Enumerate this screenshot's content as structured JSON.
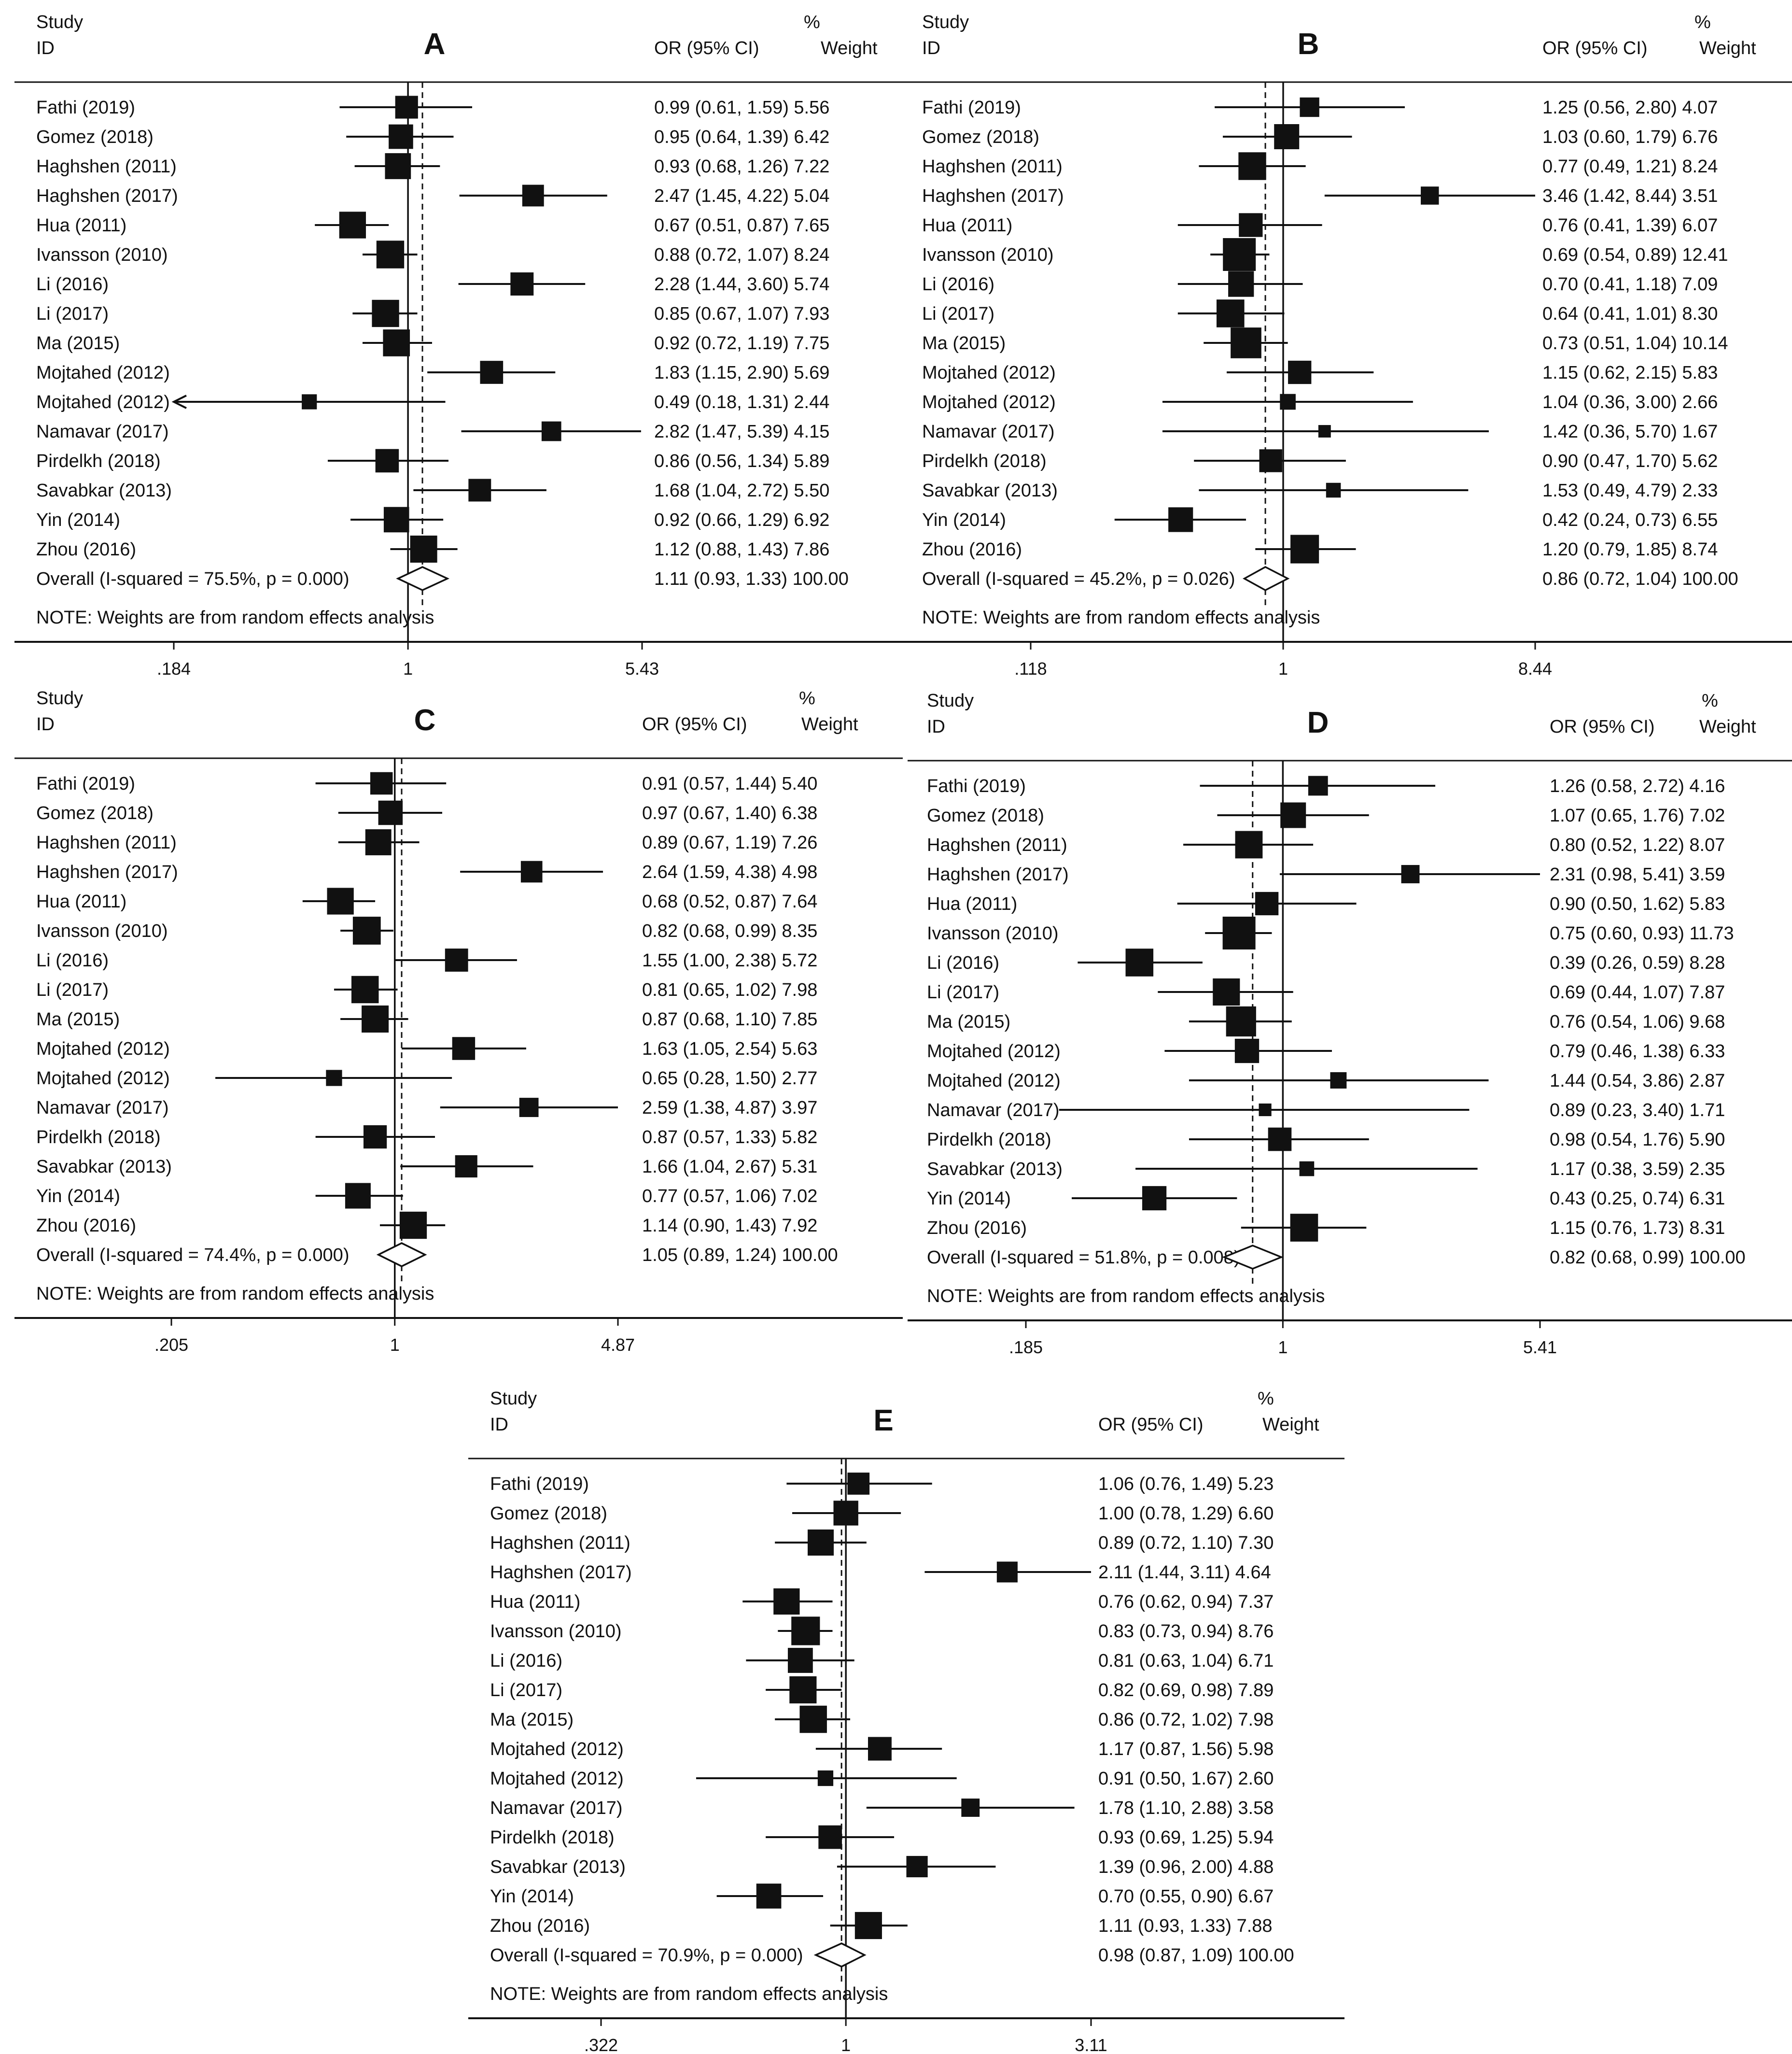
{
  "chart_data": [
    {
      "type": "forest",
      "panel": "A",
      "title": "A",
      "header": {
        "study": "Study",
        "id": "ID",
        "or": "OR (95% CI)",
        "pct": "%",
        "weight": "Weight"
      },
      "studies": [
        {
          "label": "Fathi (2019)",
          "or": 0.99,
          "lo": 0.61,
          "hi": 1.59,
          "weight": 5.56,
          "text": "0.99 (0.61, 1.59) 5.56"
        },
        {
          "label": "Gomez (2018)",
          "or": 0.95,
          "lo": 0.64,
          "hi": 1.39,
          "weight": 6.42,
          "text": "0.95 (0.64, 1.39) 6.42"
        },
        {
          "label": "Haghshen (2011)",
          "or": 0.93,
          "lo": 0.68,
          "hi": 1.26,
          "weight": 7.22,
          "text": "0.93 (0.68, 1.26) 7.22"
        },
        {
          "label": "Haghshen (2017)",
          "or": 2.47,
          "lo": 1.45,
          "hi": 4.22,
          "weight": 5.04,
          "text": "2.47 (1.45, 4.22) 5.04"
        },
        {
          "label": "Hua (2011)",
          "or": 0.67,
          "lo": 0.51,
          "hi": 0.87,
          "weight": 7.65,
          "text": "0.67 (0.51, 0.87) 7.65"
        },
        {
          "label": "Ivansson (2010)",
          "or": 0.88,
          "lo": 0.72,
          "hi": 1.07,
          "weight": 8.24,
          "text": "0.88 (0.72, 1.07) 8.24"
        },
        {
          "label": "Li (2016)",
          "or": 2.28,
          "lo": 1.44,
          "hi": 3.6,
          "weight": 5.74,
          "text": "2.28 (1.44, 3.60) 5.74"
        },
        {
          "label": "Li (2017)",
          "or": 0.85,
          "lo": 0.67,
          "hi": 1.07,
          "weight": 7.93,
          "text": "0.85 (0.67, 1.07) 7.93"
        },
        {
          "label": "Ma (2015)",
          "or": 0.92,
          "lo": 0.72,
          "hi": 1.19,
          "weight": 7.75,
          "text": "0.92 (0.72, 1.19) 7.75"
        },
        {
          "label": "Mojtahed (2012)",
          "or": 1.83,
          "lo": 1.15,
          "hi": 2.9,
          "weight": 5.69,
          "text": "1.83 (1.15, 2.90) 5.69"
        },
        {
          "label": "Mojtahed (2012)",
          "or": 0.49,
          "lo": 0.18,
          "hi": 1.31,
          "weight": 2.44,
          "text": "0.49 (0.18, 1.31) 2.44"
        },
        {
          "label": "Namavar (2017)",
          "or": 2.82,
          "lo": 1.47,
          "hi": 5.39,
          "weight": 4.15,
          "text": "2.82 (1.47, 5.39) 4.15"
        },
        {
          "label": "Pirdelkh (2018)",
          "or": 0.86,
          "lo": 0.56,
          "hi": 1.34,
          "weight": 5.89,
          "text": "0.86 (0.56, 1.34) 5.89"
        },
        {
          "label": "Savabkar (2013)",
          "or": 1.68,
          "lo": 1.04,
          "hi": 2.72,
          "weight": 5.5,
          "text": "1.68 (1.04, 2.72) 5.50"
        },
        {
          "label": "Yin (2014)",
          "or": 0.92,
          "lo": 0.66,
          "hi": 1.29,
          "weight": 6.92,
          "text": "0.92 (0.66, 1.29) 6.92"
        },
        {
          "label": "Zhou (2016)",
          "or": 1.12,
          "lo": 0.88,
          "hi": 1.43,
          "weight": 7.86,
          "text": "1.12 (0.88, 1.43) 7.86"
        }
      ],
      "overall": {
        "label": "Overall  (I-squared = 75.5%, p = 0.000)",
        "or": 1.11,
        "lo": 0.93,
        "hi": 1.33,
        "text": "1.11 (0.93, 1.33) 100.00"
      },
      "note": "NOTE: Weights are from random effects analysis",
      "axis": {
        "scale": "log",
        "min": 0.184,
        "max": 5.43,
        "ticks": [
          ".184",
          "1",
          "5.43"
        ]
      }
    },
    {
      "type": "forest",
      "panel": "B",
      "title": "B",
      "header": {
        "study": "Study",
        "id": "ID",
        "or": "OR (95% CI)",
        "pct": "%",
        "weight": "Weight"
      },
      "studies": [
        {
          "label": "Fathi (2019)",
          "or": 1.25,
          "lo": 0.56,
          "hi": 2.8,
          "weight": 4.07,
          "text": "1.25 (0.56, 2.80) 4.07"
        },
        {
          "label": "Gomez (2018)",
          "or": 1.03,
          "lo": 0.6,
          "hi": 1.79,
          "weight": 6.76,
          "text": "1.03 (0.60, 1.79) 6.76"
        },
        {
          "label": "Haghshen (2011)",
          "or": 0.77,
          "lo": 0.49,
          "hi": 1.21,
          "weight": 8.24,
          "text": "0.77 (0.49, 1.21) 8.24"
        },
        {
          "label": "Haghshen (2017)",
          "or": 3.46,
          "lo": 1.42,
          "hi": 8.44,
          "weight": 3.51,
          "text": "3.46 (1.42, 8.44) 3.51"
        },
        {
          "label": "Hua (2011)",
          "or": 0.76,
          "lo": 0.41,
          "hi": 1.39,
          "weight": 6.07,
          "text": "0.76 (0.41, 1.39) 6.07"
        },
        {
          "label": "Ivansson (2010)",
          "or": 0.69,
          "lo": 0.54,
          "hi": 0.89,
          "weight": 12.41,
          "text": "0.69 (0.54, 0.89) 12.41"
        },
        {
          "label": "Li (2016)",
          "or": 0.7,
          "lo": 0.41,
          "hi": 1.18,
          "weight": 7.09,
          "text": "0.70 (0.41, 1.18) 7.09"
        },
        {
          "label": "Li (2017)",
          "or": 0.64,
          "lo": 0.41,
          "hi": 1.01,
          "weight": 8.3,
          "text": "0.64 (0.41, 1.01) 8.30"
        },
        {
          "label": "Ma (2015)",
          "or": 0.73,
          "lo": 0.51,
          "hi": 1.04,
          "weight": 10.14,
          "text": "0.73 (0.51, 1.04) 10.14"
        },
        {
          "label": "Mojtahed (2012)",
          "or": 1.15,
          "lo": 0.62,
          "hi": 2.15,
          "weight": 5.83,
          "text": "1.15 (0.62, 2.15) 5.83"
        },
        {
          "label": "Mojtahed (2012)",
          "or": 1.04,
          "lo": 0.36,
          "hi": 3.0,
          "weight": 2.66,
          "text": "1.04 (0.36, 3.00) 2.66"
        },
        {
          "label": "Namavar (2017)",
          "or": 1.42,
          "lo": 0.36,
          "hi": 5.7,
          "weight": 1.67,
          "text": "1.42 (0.36, 5.70) 1.67"
        },
        {
          "label": "Pirdelkh (2018)",
          "or": 0.9,
          "lo": 0.47,
          "hi": 1.7,
          "weight": 5.62,
          "text": "0.90 (0.47, 1.70) 5.62"
        },
        {
          "label": "Savabkar (2013)",
          "or": 1.53,
          "lo": 0.49,
          "hi": 4.79,
          "weight": 2.33,
          "text": "1.53 (0.49, 4.79) 2.33"
        },
        {
          "label": "Yin (2014)",
          "or": 0.42,
          "lo": 0.24,
          "hi": 0.73,
          "weight": 6.55,
          "text": "0.42 (0.24, 0.73) 6.55"
        },
        {
          "label": "Zhou (2016)",
          "or": 1.2,
          "lo": 0.79,
          "hi": 1.85,
          "weight": 8.74,
          "text": "1.20 (0.79, 1.85) 8.74"
        }
      ],
      "overall": {
        "label": "Overall  (I-squared = 45.2%, p = 0.026)",
        "or": 0.86,
        "lo": 0.72,
        "hi": 1.04,
        "text": "0.86 (0.72, 1.04) 100.00"
      },
      "note": "NOTE: Weights are from random effects analysis",
      "axis": {
        "scale": "log",
        "min": 0.118,
        "max": 8.44,
        "ticks": [
          ".118",
          "1",
          "8.44"
        ]
      }
    },
    {
      "type": "forest",
      "panel": "C",
      "title": "C",
      "header": {
        "study": "Study",
        "id": "ID",
        "or": "OR (95% CI)",
        "pct": "%",
        "weight": "Weight"
      },
      "studies": [
        {
          "label": "Fathi (2019)",
          "or": 0.91,
          "lo": 0.57,
          "hi": 1.44,
          "weight": 5.4,
          "text": "0.91 (0.57, 1.44) 5.40"
        },
        {
          "label": "Gomez (2018)",
          "or": 0.97,
          "lo": 0.67,
          "hi": 1.4,
          "weight": 6.38,
          "text": "0.97 (0.67, 1.40) 6.38"
        },
        {
          "label": "Haghshen (2011)",
          "or": 0.89,
          "lo": 0.67,
          "hi": 1.19,
          "weight": 7.26,
          "text": "0.89 (0.67, 1.19) 7.26"
        },
        {
          "label": "Haghshen (2017)",
          "or": 2.64,
          "lo": 1.59,
          "hi": 4.38,
          "weight": 4.98,
          "text": "2.64 (1.59, 4.38) 4.98"
        },
        {
          "label": "Hua (2011)",
          "or": 0.68,
          "lo": 0.52,
          "hi": 0.87,
          "weight": 7.64,
          "text": "0.68 (0.52, 0.87) 7.64"
        },
        {
          "label": "Ivansson (2010)",
          "or": 0.82,
          "lo": 0.68,
          "hi": 0.99,
          "weight": 8.35,
          "text": "0.82 (0.68, 0.99) 8.35"
        },
        {
          "label": "Li (2016)",
          "or": 1.55,
          "lo": 1.0,
          "hi": 2.38,
          "weight": 5.72,
          "text": "1.55 (1.00, 2.38) 5.72"
        },
        {
          "label": "Li (2017)",
          "or": 0.81,
          "lo": 0.65,
          "hi": 1.02,
          "weight": 7.98,
          "text": "0.81 (0.65, 1.02) 7.98"
        },
        {
          "label": "Ma (2015)",
          "or": 0.87,
          "lo": 0.68,
          "hi": 1.1,
          "weight": 7.85,
          "text": "0.87 (0.68, 1.10) 7.85"
        },
        {
          "label": "Mojtahed (2012)",
          "or": 1.63,
          "lo": 1.05,
          "hi": 2.54,
          "weight": 5.63,
          "text": "1.63 (1.05, 2.54) 5.63"
        },
        {
          "label": "Mojtahed (2012)",
          "or": 0.65,
          "lo": 0.28,
          "hi": 1.5,
          "weight": 2.77,
          "text": "0.65 (0.28, 1.50) 2.77"
        },
        {
          "label": "Namavar (2017)",
          "or": 2.59,
          "lo": 1.38,
          "hi": 4.87,
          "weight": 3.97,
          "text": "2.59 (1.38, 4.87) 3.97"
        },
        {
          "label": "Pirdelkh (2018)",
          "or": 0.87,
          "lo": 0.57,
          "hi": 1.33,
          "weight": 5.82,
          "text": "0.87 (0.57, 1.33) 5.82"
        },
        {
          "label": "Savabkar (2013)",
          "or": 1.66,
          "lo": 1.04,
          "hi": 2.67,
          "weight": 5.31,
          "text": "1.66 (1.04, 2.67) 5.31"
        },
        {
          "label": "Yin (2014)",
          "or": 0.77,
          "lo": 0.57,
          "hi": 1.06,
          "weight": 7.02,
          "text": "0.77 (0.57, 1.06) 7.02"
        },
        {
          "label": "Zhou (2016)",
          "or": 1.14,
          "lo": 0.9,
          "hi": 1.43,
          "weight": 7.92,
          "text": "1.14 (0.90, 1.43) 7.92"
        }
      ],
      "overall": {
        "label": "Overall  (I-squared = 74.4%, p = 0.000)",
        "or": 1.05,
        "lo": 0.89,
        "hi": 1.24,
        "text": "1.05 (0.89, 1.24) 100.00"
      },
      "note": "NOTE: Weights are from random effects analysis",
      "axis": {
        "scale": "log",
        "min": 0.205,
        "max": 4.87,
        "ticks": [
          ".205",
          "1",
          "4.87"
        ]
      }
    },
    {
      "type": "forest",
      "panel": "D",
      "title": "D",
      "header": {
        "study": "Study",
        "id": "ID",
        "or": "OR (95% CI)",
        "pct": "%",
        "weight": "Weight"
      },
      "studies": [
        {
          "label": "Fathi (2019)",
          "or": 1.26,
          "lo": 0.58,
          "hi": 2.72,
          "weight": 4.16,
          "text": "1.26 (0.58, 2.72) 4.16"
        },
        {
          "label": "Gomez (2018)",
          "or": 1.07,
          "lo": 0.65,
          "hi": 1.76,
          "weight": 7.02,
          "text": "1.07 (0.65, 1.76) 7.02"
        },
        {
          "label": "Haghshen (2011)",
          "or": 0.8,
          "lo": 0.52,
          "hi": 1.22,
          "weight": 8.07,
          "text": "0.80 (0.52, 1.22) 8.07"
        },
        {
          "label": "Haghshen (2017)",
          "or": 2.31,
          "lo": 0.98,
          "hi": 5.41,
          "weight": 3.59,
          "text": "2.31 (0.98, 5.41) 3.59"
        },
        {
          "label": "Hua (2011)",
          "or": 0.9,
          "lo": 0.5,
          "hi": 1.62,
          "weight": 5.83,
          "text": "0.90 (0.50, 1.62) 5.83"
        },
        {
          "label": "Ivansson (2010)",
          "or": 0.75,
          "lo": 0.6,
          "hi": 0.93,
          "weight": 11.73,
          "text": "0.75 (0.60, 0.93) 11.73"
        },
        {
          "label": "Li (2016)",
          "or": 0.39,
          "lo": 0.26,
          "hi": 0.59,
          "weight": 8.28,
          "text": "0.39 (0.26, 0.59) 8.28"
        },
        {
          "label": "Li (2017)",
          "or": 0.69,
          "lo": 0.44,
          "hi": 1.07,
          "weight": 7.87,
          "text": "0.69 (0.44, 1.07) 7.87"
        },
        {
          "label": "Ma (2015)",
          "or": 0.76,
          "lo": 0.54,
          "hi": 1.06,
          "weight": 9.68,
          "text": "0.76 (0.54, 1.06) 9.68"
        },
        {
          "label": "Mojtahed (2012)",
          "or": 0.79,
          "lo": 0.46,
          "hi": 1.38,
          "weight": 6.33,
          "text": "0.79 (0.46, 1.38) 6.33"
        },
        {
          "label": "Mojtahed (2012)",
          "or": 1.44,
          "lo": 0.54,
          "hi": 3.86,
          "weight": 2.87,
          "text": "1.44 (0.54, 3.86) 2.87"
        },
        {
          "label": "Namavar (2017)",
          "or": 0.89,
          "lo": 0.23,
          "hi": 3.4,
          "weight": 1.71,
          "text": "0.89 (0.23, 3.40) 1.71"
        },
        {
          "label": "Pirdelkh (2018)",
          "or": 0.98,
          "lo": 0.54,
          "hi": 1.76,
          "weight": 5.9,
          "text": "0.98 (0.54, 1.76) 5.90"
        },
        {
          "label": "Savabkar (2013)",
          "or": 1.17,
          "lo": 0.38,
          "hi": 3.59,
          "weight": 2.35,
          "text": "1.17 (0.38, 3.59) 2.35"
        },
        {
          "label": "Yin (2014)",
          "or": 0.43,
          "lo": 0.25,
          "hi": 0.74,
          "weight": 6.31,
          "text": "0.43 (0.25, 0.74) 6.31"
        },
        {
          "label": "Zhou (2016)",
          "or": 1.15,
          "lo": 0.76,
          "hi": 1.73,
          "weight": 8.31,
          "text": "1.15 (0.76, 1.73) 8.31"
        }
      ],
      "overall": {
        "label": "Overall  (I-squared = 51.8%, p = 0.008)",
        "or": 0.82,
        "lo": 0.68,
        "hi": 0.99,
        "text": "0.82 (0.68, 0.99) 100.00"
      },
      "note": "NOTE: Weights are from random effects analysis",
      "axis": {
        "scale": "log",
        "min": 0.185,
        "max": 5.41,
        "ticks": [
          ".185",
          "1",
          "5.41"
        ]
      }
    },
    {
      "type": "forest",
      "panel": "E",
      "title": "E",
      "header": {
        "study": "Study",
        "id": "ID",
        "or": "OR (95% CI)",
        "pct": "%",
        "weight": "Weight"
      },
      "studies": [
        {
          "label": "Fathi (2019)",
          "or": 1.06,
          "lo": 0.76,
          "hi": 1.49,
          "weight": 5.23,
          "text": "1.06 (0.76, 1.49) 5.23"
        },
        {
          "label": "Gomez (2018)",
          "or": 1.0,
          "lo": 0.78,
          "hi": 1.29,
          "weight": 6.6,
          "text": "1.00 (0.78, 1.29) 6.60"
        },
        {
          "label": "Haghshen (2011)",
          "or": 0.89,
          "lo": 0.72,
          "hi": 1.1,
          "weight": 7.3,
          "text": "0.89 (0.72, 1.10) 7.30"
        },
        {
          "label": "Haghshen (2017)",
          "or": 2.11,
          "lo": 1.44,
          "hi": 3.11,
          "weight": 4.64,
          "text": "2.11 (1.44, 3.11) 4.64"
        },
        {
          "label": "Hua (2011)",
          "or": 0.76,
          "lo": 0.62,
          "hi": 0.94,
          "weight": 7.37,
          "text": "0.76 (0.62, 0.94) 7.37"
        },
        {
          "label": "Ivansson (2010)",
          "or": 0.83,
          "lo": 0.73,
          "hi": 0.94,
          "weight": 8.76,
          "text": "0.83 (0.73, 0.94) 8.76"
        },
        {
          "label": "Li (2016)",
          "or": 0.81,
          "lo": 0.63,
          "hi": 1.04,
          "weight": 6.71,
          "text": "0.81 (0.63, 1.04) 6.71"
        },
        {
          "label": "Li (2017)",
          "or": 0.82,
          "lo": 0.69,
          "hi": 0.98,
          "weight": 7.89,
          "text": "0.82 (0.69, 0.98) 7.89"
        },
        {
          "label": "Ma (2015)",
          "or": 0.86,
          "lo": 0.72,
          "hi": 1.02,
          "weight": 7.98,
          "text": "0.86 (0.72, 1.02) 7.98"
        },
        {
          "label": "Mojtahed (2012)",
          "or": 1.17,
          "lo": 0.87,
          "hi": 1.56,
          "weight": 5.98,
          "text": "1.17 (0.87, 1.56) 5.98"
        },
        {
          "label": "Mojtahed (2012)",
          "or": 0.91,
          "lo": 0.5,
          "hi": 1.67,
          "weight": 2.6,
          "text": "0.91 (0.50, 1.67) 2.60"
        },
        {
          "label": "Namavar (2017)",
          "or": 1.78,
          "lo": 1.1,
          "hi": 2.88,
          "weight": 3.58,
          "text": "1.78 (1.10, 2.88) 3.58"
        },
        {
          "label": "Pirdelkh (2018)",
          "or": 0.93,
          "lo": 0.69,
          "hi": 1.25,
          "weight": 5.94,
          "text": "0.93 (0.69, 1.25) 5.94"
        },
        {
          "label": "Savabkar (2013)",
          "or": 1.39,
          "lo": 0.96,
          "hi": 2.0,
          "weight": 4.88,
          "text": "1.39 (0.96, 2.00) 4.88"
        },
        {
          "label": "Yin (2014)",
          "or": 0.7,
          "lo": 0.55,
          "hi": 0.9,
          "weight": 6.67,
          "text": "0.70 (0.55, 0.90) 6.67"
        },
        {
          "label": "Zhou (2016)",
          "or": 1.11,
          "lo": 0.93,
          "hi": 1.33,
          "weight": 7.88,
          "text": "1.11 (0.93, 1.33) 7.88"
        }
      ],
      "overall": {
        "label": "Overall  (I-squared = 70.9%, p = 0.000)",
        "or": 0.98,
        "lo": 0.87,
        "hi": 1.09,
        "text": "0.98 (0.87, 1.09) 100.00"
      },
      "note": "NOTE: Weights are from random effects analysis",
      "axis": {
        "scale": "log",
        "min": 0.322,
        "max": 3.11,
        "ticks": [
          ".322",
          "1",
          "3.11"
        ]
      }
    }
  ]
}
